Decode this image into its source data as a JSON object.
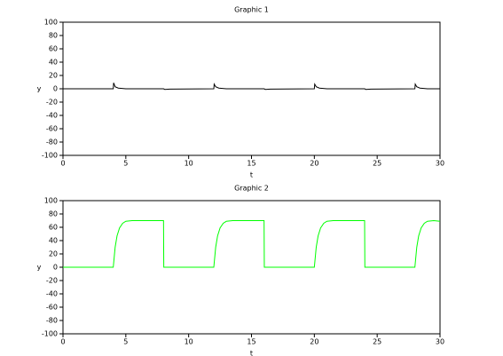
{
  "chart_data": [
    {
      "type": "line",
      "title": "Graphic 1",
      "xlabel": "t",
      "ylabel": "y",
      "color": "#000000",
      "x": [
        0,
        4,
        4.03,
        4.15,
        4.4,
        5,
        8,
        8.1,
        8.5,
        12,
        12.03,
        12.15,
        12.4,
        13,
        16,
        16.1,
        16.5,
        20,
        20.03,
        20.15,
        20.4,
        21,
        24,
        24.1,
        24.5,
        28,
        28.03,
        28.15,
        28.4,
        29,
        30
      ],
      "values": [
        0,
        0,
        9,
        3,
        1,
        0,
        0,
        -1,
        -0.5,
        0,
        7,
        3,
        1,
        0,
        0,
        -1,
        -0.5,
        0,
        7,
        3,
        1,
        0,
        0,
        -1,
        -0.5,
        0,
        7,
        3,
        1,
        0,
        0
      ],
      "xlim": [
        0,
        30
      ],
      "xticks": [
        0,
        5,
        10,
        15,
        20,
        25,
        30
      ],
      "ylim": [
        -100,
        100
      ],
      "yticks": [
        -100,
        -80,
        -60,
        -40,
        -20,
        0,
        20,
        40,
        60,
        80,
        100
      ]
    },
    {
      "type": "line",
      "title": "Graphic 2",
      "xlabel": "t",
      "ylabel": "y",
      "color": "#00ff00",
      "x": [
        0,
        4,
        4.15,
        4.3,
        4.5,
        4.75,
        5,
        5.5,
        8,
        8.02,
        12,
        12.15,
        12.3,
        12.5,
        12.75,
        13,
        13.5,
        16,
        16.02,
        20,
        20.15,
        20.3,
        20.5,
        20.75,
        21,
        21.5,
        24,
        24.02,
        28,
        28.15,
        28.3,
        28.5,
        28.75,
        29,
        29.5,
        30
      ],
      "values": [
        0,
        0,
        30,
        47,
        59,
        66,
        69,
        70,
        70,
        0,
        0,
        30,
        47,
        59,
        66,
        69,
        70,
        70,
        0,
        0,
        30,
        47,
        59,
        66,
        69,
        70,
        70,
        0,
        0,
        30,
        47,
        59,
        66,
        69,
        70,
        69
      ],
      "xlim": [
        0,
        30
      ],
      "xticks": [
        0,
        5,
        10,
        15,
        20,
        25,
        30
      ],
      "ylim": [
        -100,
        100
      ],
      "yticks": [
        -100,
        -80,
        -60,
        -40,
        -20,
        0,
        20,
        40,
        60,
        80,
        100
      ]
    }
  ]
}
